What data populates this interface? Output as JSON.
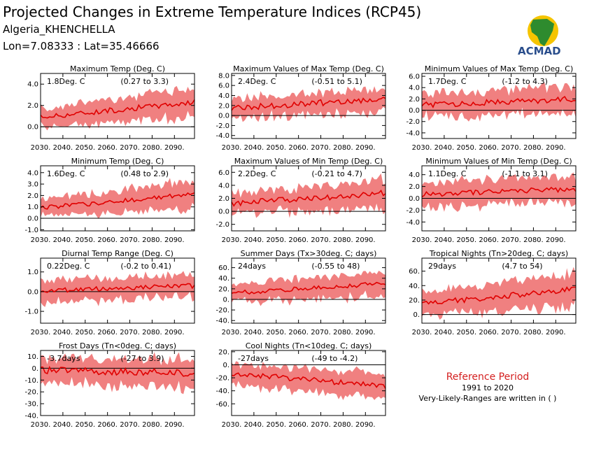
{
  "header": {
    "title": "Projected Changes in Extreme Temperature Indices (RCP45)",
    "location": "Algeria_KHENCHELLA",
    "coords": "Lon=7.08333 : Lat=35.46666"
  },
  "logo": {
    "text": "ACMAD"
  },
  "reference": {
    "title": "Reference Period",
    "period": "1991 to 2020",
    "note": "Very-Likely-Ranges are written in ( )"
  },
  "colors": {
    "band": "#f08080",
    "line": "#e00000",
    "zero": "#000000",
    "frame": "#000000"
  },
  "chart_data": [
    {
      "type": "area",
      "title": "Maximum Temp (Deg. C)",
      "change": "1.8Deg. C",
      "range": "(0.27 to 3.3)",
      "x": [
        2030,
        2099
      ],
      "xticks": [
        "2030.",
        "2040.",
        "2050.",
        "2060.",
        "2070.",
        "2080.",
        "2090."
      ],
      "ylim": [
        -1.1,
        5.0
      ],
      "yticks": [
        0,
        2,
        4
      ],
      "ytick_labels": [
        "0.0",
        "2.0",
        "4.0"
      ],
      "mean_start": 0.9,
      "mean_end": 2.3,
      "spread_start": 0.9,
      "spread_end": 1.5,
      "noise": 0.25,
      "grid": false
    },
    {
      "type": "area",
      "title": "Maximum Values of Max Temp (Deg. C)",
      "change": "2.4Deg. C",
      "range": "(-0.51 to 5.1)",
      "x": [
        2030,
        2099
      ],
      "xticks": [
        "2030.",
        "2040.",
        "2050.",
        "2060.",
        "2070.",
        "2080.",
        "2090."
      ],
      "ylim": [
        -4.6,
        8.4
      ],
      "yticks": [
        -4,
        -2,
        0,
        2,
        4,
        6,
        8
      ],
      "ytick_labels": [
        "-4.0",
        "-2.0",
        "0.0",
        "2.0",
        "4.0",
        "6.0",
        "8.0"
      ],
      "mean_start": 1.5,
      "mean_end": 3.3,
      "spread_start": 2.0,
      "spread_end": 2.6,
      "noise": 0.6,
      "grid": false
    },
    {
      "type": "area",
      "title": "Minimum Values of Max Temp (Deg. C)",
      "change": "1.7Deg. C",
      "range": "(-1.2 to 4.3)",
      "x": [
        2030,
        2099
      ],
      "xticks": [
        "2030.",
        "2040.",
        "2050.",
        "2060.",
        "2070.",
        "2080.",
        "2090."
      ],
      "ylim": [
        -5.0,
        6.5
      ],
      "yticks": [
        -4,
        -2,
        0,
        2,
        4,
        6
      ],
      "ytick_labels": [
        "-4.0",
        "-2.0",
        "0.0",
        "2.0",
        "4.0",
        "6.0"
      ],
      "mean_start": 0.9,
      "mean_end": 2.0,
      "spread_start": 2.2,
      "spread_end": 2.6,
      "noise": 0.5,
      "grid": false
    },
    {
      "type": "area",
      "title": "Minimum Temp (Deg. C)",
      "change": "1.6Deg. C",
      "range": "(0.48 to 2.9)",
      "x": [
        2030,
        2099
      ],
      "xticks": [
        "2030.",
        "2040.",
        "2050.",
        "2060.",
        "2070.",
        "2080.",
        "2090."
      ],
      "ylim": [
        -1.1,
        4.6
      ],
      "yticks": [
        -1,
        0,
        1,
        2,
        3,
        4
      ],
      "ytick_labels": [
        "-1.0",
        "0.0",
        "1.0",
        "2.0",
        "3.0",
        "4.0"
      ],
      "mean_start": 0.9,
      "mean_end": 2.1,
      "spread_start": 0.8,
      "spread_end": 1.3,
      "noise": 0.2,
      "grid": false
    },
    {
      "type": "area",
      "title": "Maximum Values of Min Temp (Deg. C)",
      "change": "2.2Deg. C",
      "range": "(-0.21 to 4.7)",
      "x": [
        2030,
        2099
      ],
      "xticks": [
        "2030.",
        "2040.",
        "2050.",
        "2060.",
        "2070.",
        "2080.",
        "2090."
      ],
      "ylim": [
        -3.0,
        7.0
      ],
      "yticks": [
        -2,
        0,
        2,
        4,
        6
      ],
      "ytick_labels": [
        "-2.0",
        "0.0",
        "2.0",
        "4.0",
        "6.0"
      ],
      "mean_start": 1.2,
      "mean_end": 2.8,
      "spread_start": 1.7,
      "spread_end": 2.3,
      "noise": 0.45,
      "grid": false
    },
    {
      "type": "area",
      "title": "Minimum Values of Min Temp (Deg. C)",
      "change": "1.1Deg. C",
      "range": "(-1.1 to 3.1)",
      "x": [
        2030,
        2099
      ],
      "xticks": [
        "2030.",
        "2040.",
        "2050.",
        "2060.",
        "2070.",
        "2080.",
        "2090."
      ],
      "ylim": [
        -5.5,
        5.5
      ],
      "yticks": [
        -4,
        -2,
        0,
        2,
        4
      ],
      "ytick_labels": [
        "-4.0",
        "-2.0",
        "0.0",
        "2.0",
        "4.0"
      ],
      "mean_start": 0.7,
      "mean_end": 1.6,
      "spread_start": 2.2,
      "spread_end": 2.4,
      "noise": 0.45,
      "grid": false
    },
    {
      "type": "area",
      "title": "Diurnal Temp Range (Deg. C)",
      "change": "0.22Deg. C",
      "range": "(-0.2 to 0.41)",
      "x": [
        2030,
        2099
      ],
      "xticks": [
        "2030.",
        "2040.",
        "2050.",
        "2060.",
        "2070.",
        "2080.",
        "2090."
      ],
      "ylim": [
        -1.6,
        1.7
      ],
      "yticks": [
        -1,
        0,
        1
      ],
      "ytick_labels": [
        "-1.0",
        "0.0",
        "1.0"
      ],
      "mean_start": 0.05,
      "mean_end": 0.3,
      "spread_start": 0.6,
      "spread_end": 0.6,
      "noise": 0.12,
      "grid": false
    },
    {
      "type": "area",
      "title": "Summer Days (Tx>30deg. C; days)",
      "change": "24days",
      "range": "(-0.55 to 48)",
      "x": [
        2030,
        2099
      ],
      "xticks": [
        "2030.",
        "2040.",
        "2050.",
        "2060.",
        "2070.",
        "2080.",
        "2090."
      ],
      "ylim": [
        -45,
        78
      ],
      "yticks": [
        -40,
        -20,
        0,
        20,
        40,
        60
      ],
      "ytick_labels": [
        "-40.",
        "-20.",
        "0.",
        "20.",
        "40.",
        "60."
      ],
      "mean_start": 12,
      "mean_end": 30,
      "spread_start": 18,
      "spread_end": 25,
      "noise": 4,
      "grid": false
    },
    {
      "type": "area",
      "title": "Tropical Nights (Tn>20deg. C; days)",
      "change": "29days",
      "range": "(4.7 to 54)",
      "x": [
        2030,
        2099
      ],
      "xticks": [
        "2030.",
        "2040.",
        "2050.",
        "2060.",
        "2070.",
        "2080.",
        "2090."
      ],
      "ylim": [
        -12,
        78
      ],
      "yticks": [
        0,
        20,
        40,
        60
      ],
      "ytick_labels": [
        "0.",
        "20.",
        "40.",
        "60."
      ],
      "mean_start": 15,
      "mean_end": 35,
      "spread_start": 17,
      "spread_end": 24,
      "noise": 4,
      "grid": false
    },
    {
      "type": "area",
      "title": "Frost Days (Tn<0deg. C; days)",
      "change": "-3.7days",
      "range": "(-27 to 3.9)",
      "x": [
        2030,
        2099
      ],
      "xticks": [
        "2030.",
        "2040.",
        "2050.",
        "2060.",
        "2070.",
        "2080.",
        "2090."
      ],
      "ylim": [
        -40,
        15
      ],
      "yticks": [
        -40,
        -30,
        -20,
        -10,
        0,
        10
      ],
      "ytick_labels": [
        "-40.",
        "-30.",
        "-20.",
        "-10.",
        "0.",
        "10."
      ],
      "mean_start": -1.5,
      "mean_end": -4,
      "spread_start": 11,
      "spread_end": 13,
      "noise": 3,
      "grid": false
    },
    {
      "type": "area",
      "title": "Cool Nights (Tn<10deg. C; days)",
      "change": "-27days",
      "range": "(-49 to -4.2)",
      "x": [
        2030,
        2099
      ],
      "xticks": [
        "2030.",
        "2040.",
        "2050.",
        "2060.",
        "2070.",
        "2080.",
        "2090."
      ],
      "ylim": [
        -78,
        22
      ],
      "yticks": [
        -60,
        -40,
        -20,
        0,
        20
      ],
      "ytick_labels": [
        "-60.",
        "-40.",
        "-20.",
        "0.",
        "20."
      ],
      "mean_start": -13,
      "mean_end": -33,
      "spread_start": 17,
      "spread_end": 21,
      "noise": 4,
      "grid": false
    }
  ]
}
